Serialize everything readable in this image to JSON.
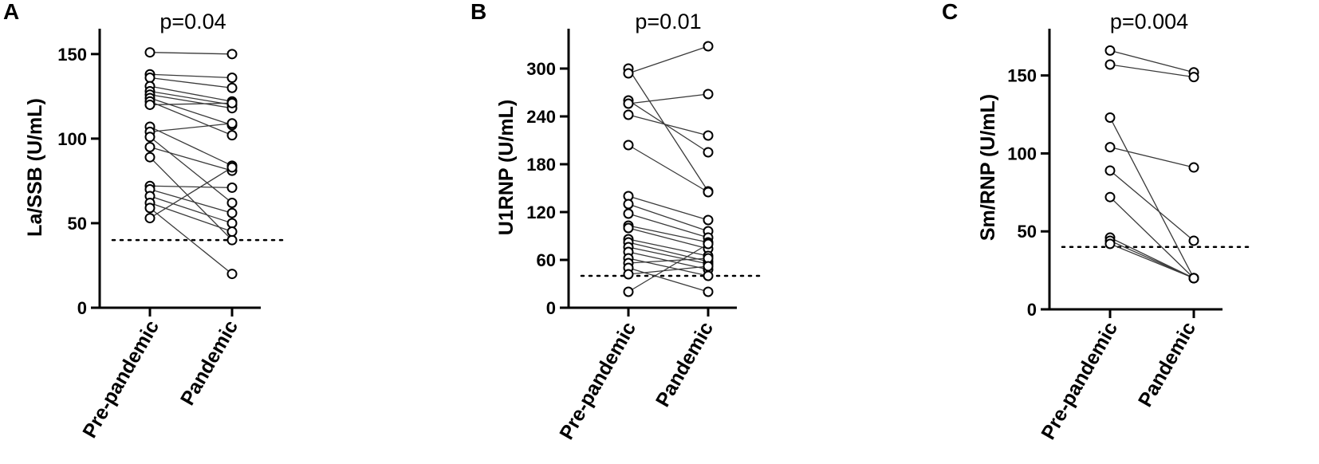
{
  "chart_data": [
    {
      "type": "scatter",
      "panel": "A",
      "annotation": "p=0.04",
      "ylabel": "La/SSB (U/mL)",
      "categories": [
        "Pre-pandemic",
        "Pandemic"
      ],
      "ylim": [
        0,
        165
      ],
      "yticks": [
        0,
        50,
        100,
        150
      ],
      "threshold": 40,
      "pairs": [
        [
          151,
          150
        ],
        [
          138,
          136
        ],
        [
          136,
          130
        ],
        [
          131,
          122
        ],
        [
          128,
          120
        ],
        [
          126,
          118
        ],
        [
          124,
          108
        ],
        [
          122,
          102
        ],
        [
          120,
          121
        ],
        [
          107,
          84
        ],
        [
          104,
          109
        ],
        [
          101,
          62
        ],
        [
          95,
          81
        ],
        [
          89,
          40
        ],
        [
          72,
          71
        ],
        [
          70,
          56
        ],
        [
          66,
          50
        ],
        [
          62,
          45
        ],
        [
          59,
          20
        ],
        [
          53,
          83
        ]
      ]
    },
    {
      "type": "scatter",
      "panel": "B",
      "annotation": "p=0.01",
      "ylabel": "U1RNP (U/mL)",
      "categories": [
        "Pre-pandemic",
        "Pandemic"
      ],
      "ylim": [
        0,
        350
      ],
      "yticks": [
        0,
        60,
        120,
        180,
        240,
        300
      ],
      "threshold": 40,
      "pairs": [
        [
          300,
          146
        ],
        [
          294,
          328
        ],
        [
          260,
          195
        ],
        [
          256,
          268
        ],
        [
          242,
          216
        ],
        [
          204,
          145
        ],
        [
          140,
          110
        ],
        [
          130,
          96
        ],
        [
          118,
          88
        ],
        [
          103,
          82
        ],
        [
          100,
          74
        ],
        [
          86,
          65
        ],
        [
          82,
          58
        ],
        [
          76,
          55
        ],
        [
          70,
          48
        ],
        [
          62,
          40
        ],
        [
          56,
          62
        ],
        [
          50,
          20
        ],
        [
          42,
          52
        ],
        [
          20,
          80
        ]
      ]
    },
    {
      "type": "scatter",
      "panel": "C",
      "annotation": "p=0.004",
      "ylabel": "Sm/RNP (U/mL)",
      "categories": [
        "Pre-pandemic",
        "Pandemic"
      ],
      "ylim": [
        0,
        180
      ],
      "yticks": [
        0,
        50,
        100,
        150
      ],
      "threshold": 40,
      "pairs": [
        [
          166,
          152
        ],
        [
          157,
          149
        ],
        [
          123,
          20
        ],
        [
          104,
          91
        ],
        [
          89,
          44
        ],
        [
          72,
          20
        ],
        [
          46,
          20
        ],
        [
          44,
          20
        ],
        [
          42,
          20
        ]
      ]
    }
  ]
}
